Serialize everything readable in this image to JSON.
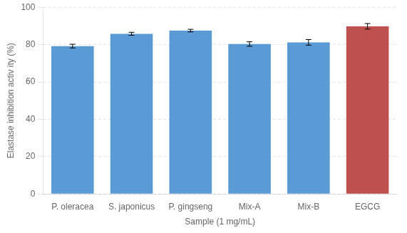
{
  "chart_data": {
    "type": "bar",
    "categories": [
      "P. oleracea",
      "S. japonicus",
      "P. gingseng",
      "Mix-A",
      "Mix-B",
      "EGCG"
    ],
    "values": [
      79.2,
      85.8,
      87.5,
      80.3,
      81.2,
      89.8
    ],
    "errors": [
      1.0,
      0.8,
      0.7,
      1.2,
      1.5,
      1.5
    ],
    "colors": [
      "#5b9bd5",
      "#5b9bd5",
      "#5b9bd5",
      "#5b9bd5",
      "#5b9bd5",
      "#c0504d"
    ],
    "ylabel": "Elastase inhibition activ ity (%)",
    "xlabel": "Sample (1 mg/mL)",
    "ylim": [
      0,
      100
    ],
    "yticks": [
      0,
      20,
      40,
      60,
      80,
      100
    ],
    "grid": true
  }
}
